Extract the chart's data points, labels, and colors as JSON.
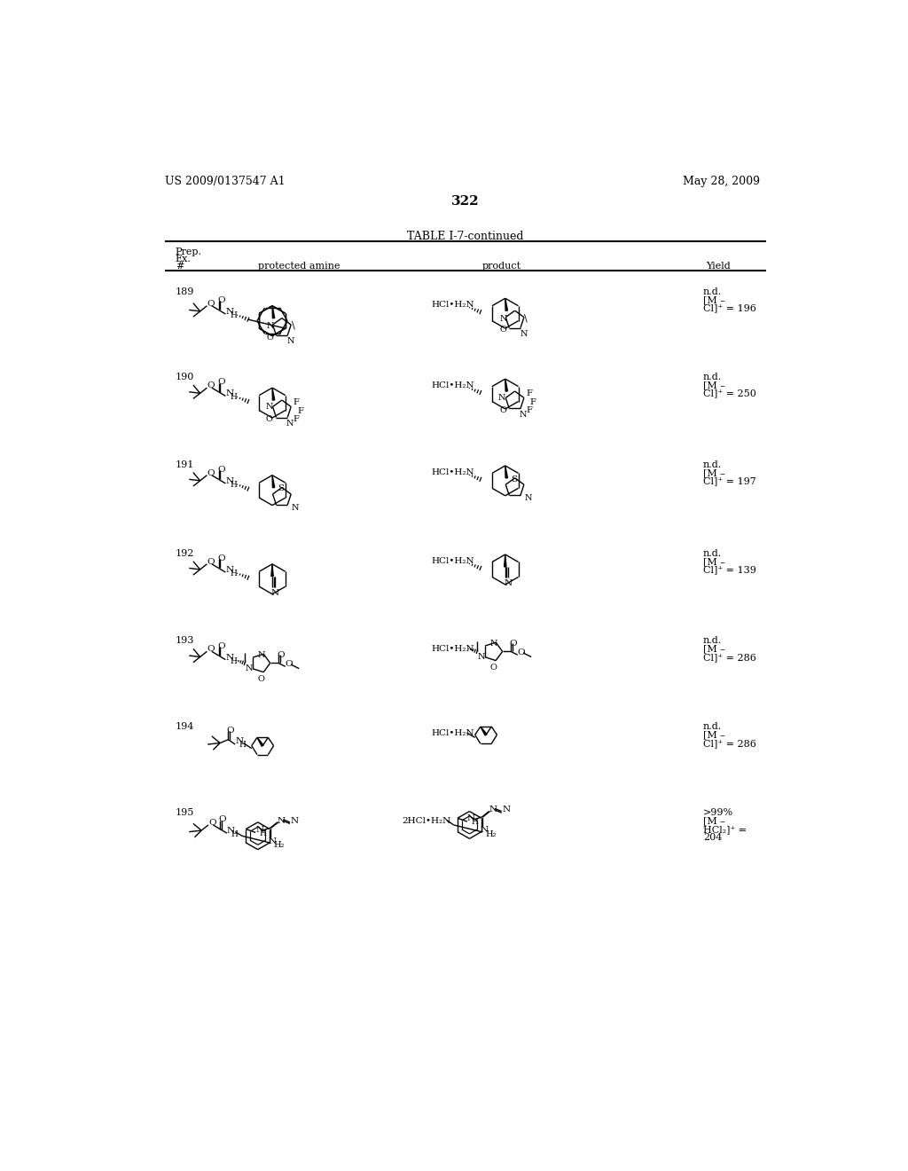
{
  "background_color": "#ffffff",
  "page_number": "322",
  "header_left": "US 2009/0137547 A1",
  "header_right": "May 28, 2009",
  "table_title": "TABLE I-7-continued",
  "rows": [
    {
      "num": "189",
      "yield_lines": [
        "n.d.",
        "[M –",
        "Cl]⁺ = 196"
      ]
    },
    {
      "num": "190",
      "yield_lines": [
        "n.d.",
        "[M –",
        "Cl]⁺ = 250"
      ]
    },
    {
      "num": "191",
      "yield_lines": [
        "n.d.",
        "[M –",
        "Cl]⁺ = 197"
      ]
    },
    {
      "num": "192",
      "yield_lines": [
        "n.d.",
        "[M –",
        "Cl]⁺ = 139"
      ]
    },
    {
      "num": "193",
      "yield_lines": [
        "n.d.",
        "[M –",
        "Cl]⁺ = 286"
      ]
    },
    {
      "num": "194",
      "yield_lines": [
        "n.d.",
        "[M –",
        "Cl]⁺ = 286"
      ]
    },
    {
      "num": "195",
      "yield_lines": [
        ">99%",
        "[M –",
        "HCl₂]⁺ =",
        "204"
      ]
    }
  ]
}
